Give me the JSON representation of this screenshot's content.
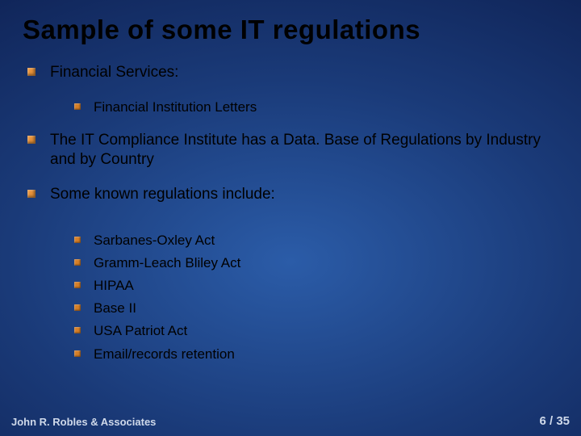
{
  "title": "Sample of some IT regulations",
  "colors": {
    "bullet_primary": "#e8933a",
    "bullet_secondary": "#d67f28",
    "title_color": "#000000",
    "body_color": "#000000",
    "footer_color": "#cfd9ea",
    "bg_center": "#2b5ca8",
    "bg_mid": "#1a3a78",
    "bg_outer": "#061238"
  },
  "typography": {
    "title_fontsize": 33,
    "lvl1_fontsize": 19,
    "lvl2_fontsize": 17,
    "footer_fontsize": 13,
    "font_family": "Arial"
  },
  "bullets": {
    "lvl1": [
      {
        "text": "Financial Services:"
      },
      {
        "text": "The IT Compliance Institute has a Data. Base of Regulations by Industry and by Country"
      },
      {
        "text": "Some known regulations include:"
      }
    ],
    "lvl2_group1": [
      {
        "text": "Financial Institution Letters"
      }
    ],
    "lvl2_group2": [
      {
        "text": "Sarbanes-Oxley Act"
      },
      {
        "text": "Gramm-Leach Bliley Act"
      },
      {
        "text": "HIPAA"
      },
      {
        "text": "Base II"
      },
      {
        "text": "USA Patriot Act"
      },
      {
        "text": "Email/records retention"
      }
    ]
  },
  "footer": {
    "author": "John R. Robles & Associates",
    "page_current": "6",
    "page_sep": " / ",
    "page_total": "35"
  }
}
